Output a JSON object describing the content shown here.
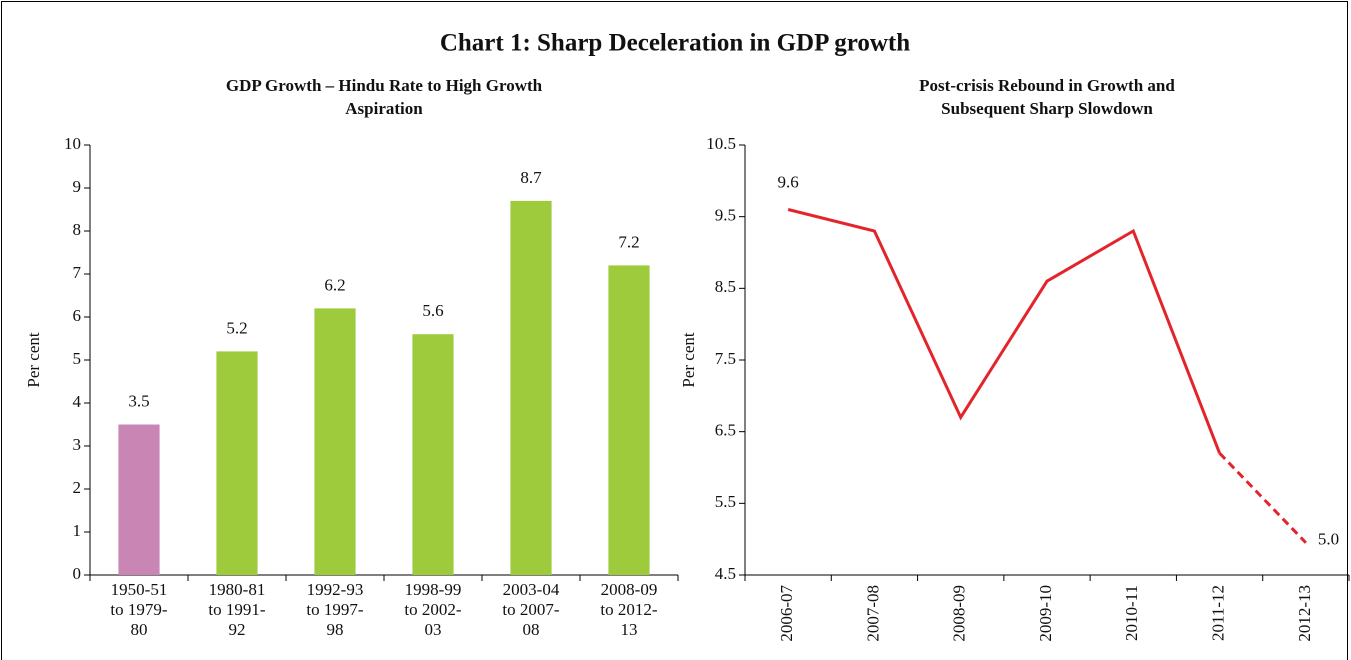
{
  "title": "Chart 1: Sharp Deceleration in GDP growth",
  "chart_data": [
    {
      "type": "bar",
      "title": "GDP Growth – Hindu Rate to High Growth Aspiration",
      "ylabel": "Per cent",
      "categories": [
        "1950-51 to 1979-80",
        "1980-81 to 1991-92",
        "1992-93 to 1997-98",
        "1998-99 to 2002-03",
        "2003-04 to 2007-08",
        "2008-09 to 2012-13"
      ],
      "values": [
        3.5,
        5.2,
        6.2,
        5.6,
        8.7,
        7.2
      ],
      "colors": [
        "#c986b4",
        "#9dcb3b",
        "#9dcb3b",
        "#9dcb3b",
        "#9dcb3b",
        "#9dcb3b"
      ],
      "ylim": [
        0,
        10
      ],
      "yticks": [
        0,
        1,
        2,
        3,
        4,
        5,
        6,
        7,
        8,
        9,
        10
      ]
    },
    {
      "type": "line",
      "title": "Post-crisis Rebound in Growth and Subsequent Sharp Slowdown",
      "ylabel": "Per cent",
      "categories": [
        "2006-07",
        "2007-08",
        "2008-09",
        "2009-10",
        "2010-11",
        "2011-12",
        "2012-13"
      ],
      "series": [
        {
          "color": "#e3242b",
          "values": [
            9.6,
            9.3,
            6.7,
            8.6,
            9.3,
            6.2,
            4.95
          ],
          "value_labels": [
            "9.6",
            null,
            null,
            null,
            null,
            null,
            "5.0"
          ],
          "dashed_from": 5
        }
      ],
      "ylim": [
        4.5,
        10.5
      ],
      "yticks": [
        4.5,
        5.5,
        6.5,
        7.5,
        8.5,
        9.5,
        10.5
      ]
    }
  ]
}
